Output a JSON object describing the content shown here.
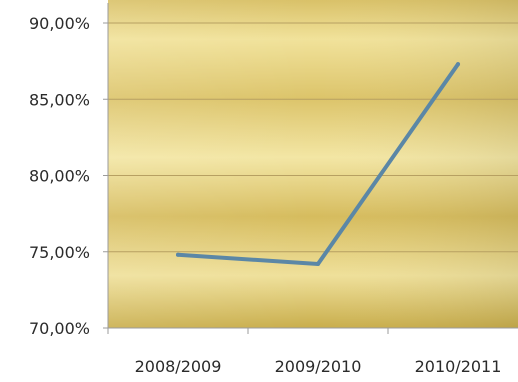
{
  "chart_data": {
    "type": "line",
    "categories": [
      "2008/2009",
      "2009/2010",
      "2010/2011"
    ],
    "series": [
      {
        "values": [
          74.8,
          74.2,
          87.3
        ]
      }
    ],
    "yticks": [
      "70,00%",
      "75,00%",
      "80,00%",
      "85,00%",
      "90,00%"
    ],
    "ylim": [
      70,
      90
    ],
    "grid": true,
    "legend": "none",
    "title": "",
    "xlabel": "",
    "ylabel": "",
    "colors": {
      "line": "#5b87a6",
      "gridline": "#b7a062",
      "axis": "#9b9b9b",
      "plot_gold_light": "#f4e6a0",
      "plot_gold_dark": "#cfb653"
    }
  }
}
